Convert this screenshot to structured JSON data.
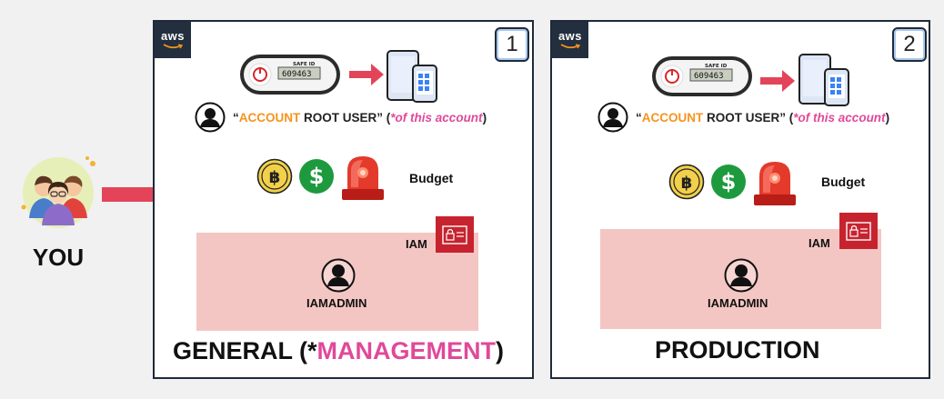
{
  "you": {
    "label": "YOU"
  },
  "accounts": [
    {
      "number": "1",
      "aws_logo": "aws",
      "token_brand": "SAFE ID",
      "token_code": "609463",
      "root_user": {
        "open_quote": "“",
        "word1": "ACCOUNT",
        "word2": "ROOT USER",
        "close_quote": "”",
        "note_open": "(",
        "note": "*of this account",
        "note_close": ")"
      },
      "budget_label": "Budget",
      "iam_label": "IAM",
      "iam_user": "IAMADMIN",
      "title_prefix": "GENERAL (*",
      "title_highlight": "MANAGEMENT",
      "title_suffix": ")"
    },
    {
      "number": "2",
      "aws_logo": "aws",
      "token_brand": "SAFE ID",
      "token_code": "609463",
      "root_user": {
        "open_quote": "“",
        "word1": "ACCOUNT",
        "word2": "ROOT USER",
        "close_quote": "”",
        "note_open": "(",
        "note": "*of this account",
        "note_close": ")"
      },
      "budget_label": "Budget",
      "iam_label": "IAM",
      "iam_user": "IAMADMIN",
      "title_prefix": "PRODUCTION",
      "title_highlight": "",
      "title_suffix": ""
    }
  ],
  "colors": {
    "arrow_red": "#e34459",
    "aws_dark": "#232f3e",
    "iam_pink": "#f4c6c3",
    "iam_red": "#c7232f",
    "orange": "#f7931e",
    "pink": "#e0499a",
    "coin_gold": "#f2d04b",
    "dollar_green": "#1e9a3e"
  },
  "icons": [
    "user-group-icon",
    "hardware-token-icon",
    "mobile-devices-icon",
    "user-silhouette-icon",
    "bitcoin-coin-icon",
    "dollar-coin-icon",
    "alarm-siren-icon",
    "iam-identity-icon"
  ]
}
